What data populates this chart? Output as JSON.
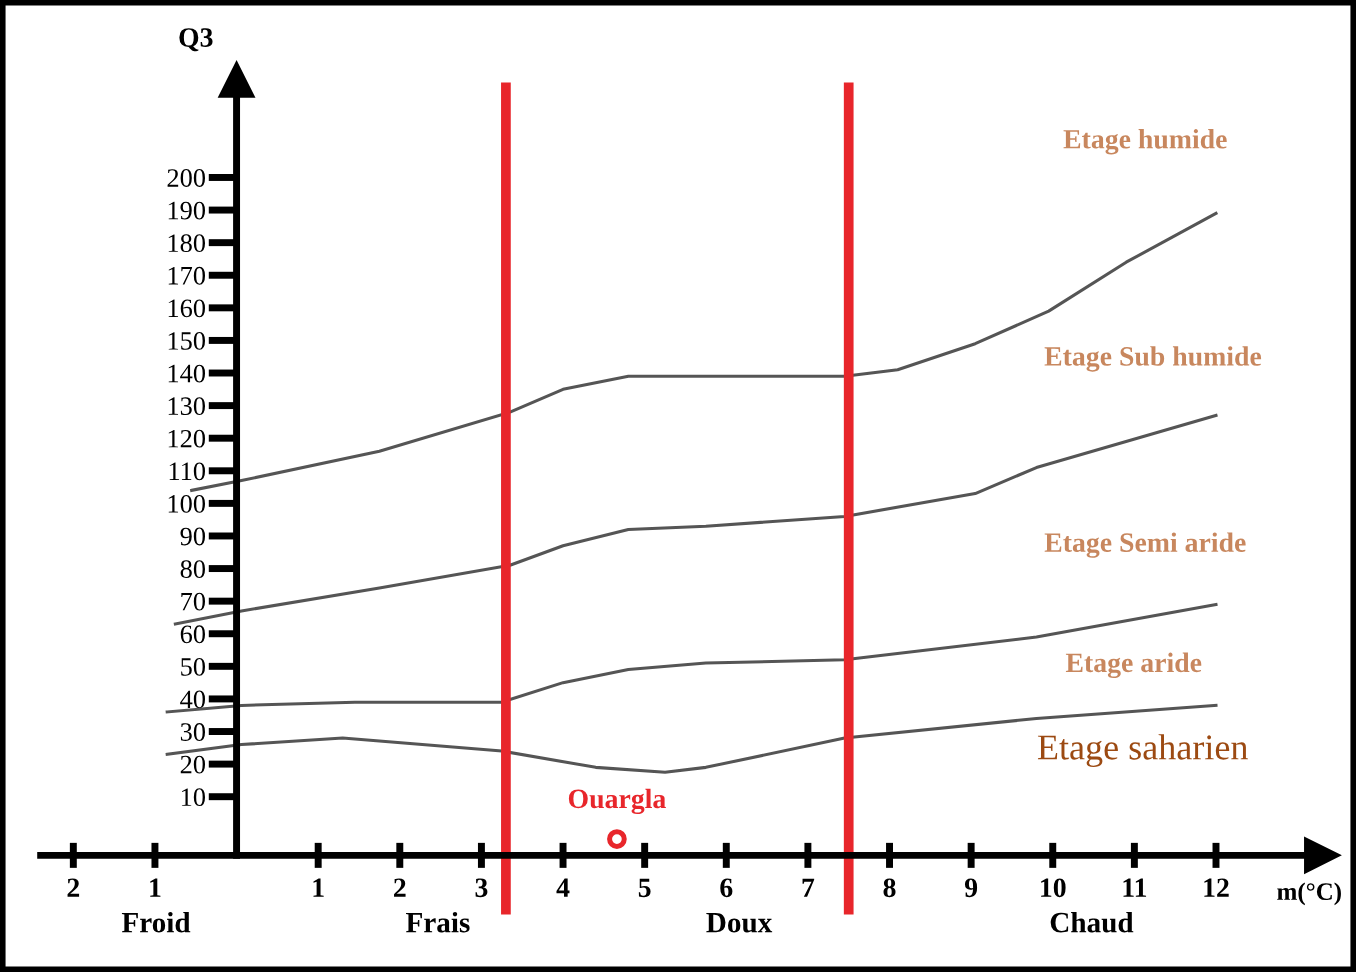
{
  "chart_data": {
    "type": "line",
    "xlabel": "m(°C)",
    "ylabel": "Q3",
    "xlim": [
      -2.4,
      13.3
    ],
    "ylim": [
      -8,
      230
    ],
    "xticks": [
      {
        "value": -2,
        "label": "2"
      },
      {
        "value": -1,
        "label": "1"
      },
      1,
      2,
      3,
      4,
      5,
      6,
      7,
      8,
      9,
      10,
      11,
      12
    ],
    "yticks": [
      10,
      20,
      30,
      40,
      50,
      60,
      70,
      80,
      90,
      100,
      110,
      120,
      130,
      140,
      150,
      160,
      170,
      180,
      190,
      200
    ],
    "grid": false,
    "legend": false,
    "marker": "none",
    "line_style": "solid",
    "series": [
      {
        "color": "#555555",
        "x": [
          -0.55,
          0.06,
          1.75,
          3.35,
          4.0,
          4.8,
          5.75,
          7.45,
          8.1,
          9.05,
          9.95,
          10.9,
          12.0
        ],
        "values": [
          104,
          107,
          116,
          128,
          135,
          139,
          139,
          139,
          141,
          149,
          159,
          174,
          189
        ]
      },
      {
        "color": "#555555",
        "x": [
          -0.75,
          0.06,
          1.75,
          3.35,
          4.0,
          4.8,
          5.75,
          7.45,
          9.05,
          9.8,
          12.0
        ],
        "values": [
          63,
          67,
          74,
          81,
          87,
          92,
          93,
          96,
          103,
          111,
          127
        ]
      },
      {
        "color": "#555555",
        "x": [
          -0.85,
          0.06,
          1.45,
          3.25,
          4.0,
          4.8,
          5.75,
          7.45,
          9.8,
          12.0
        ],
        "values": [
          36,
          38,
          39,
          39,
          45,
          49,
          51,
          52,
          59,
          69
        ]
      },
      {
        "color": "#555555",
        "x": [
          -0.85,
          0.06,
          1.3,
          3.25,
          4.4,
          5.25,
          5.75,
          7.45,
          9.8,
          12.0
        ],
        "values": [
          23,
          26,
          28,
          24,
          19,
          17.5,
          19,
          28,
          34,
          38
        ]
      },
      {
        "type": "scatter",
        "name": "Ouargla",
        "color": "#e8262b",
        "marker": "circle",
        "x": [
          4.66
        ],
        "values": [
          -3
        ]
      }
    ],
    "ref_lines": [
      {
        "axis": "x",
        "value": 3.3,
        "color": "#e8262b"
      },
      {
        "axis": "x",
        "value": 7.5,
        "color": "#e8262b"
      }
    ],
    "annotations": [
      "Etage humide",
      "Etage Sub humide",
      "Etage Semi aride",
      "Etage aride",
      "Etage saharien",
      "Froid",
      "Frais",
      "Doux",
      "Chaud"
    ]
  }
}
